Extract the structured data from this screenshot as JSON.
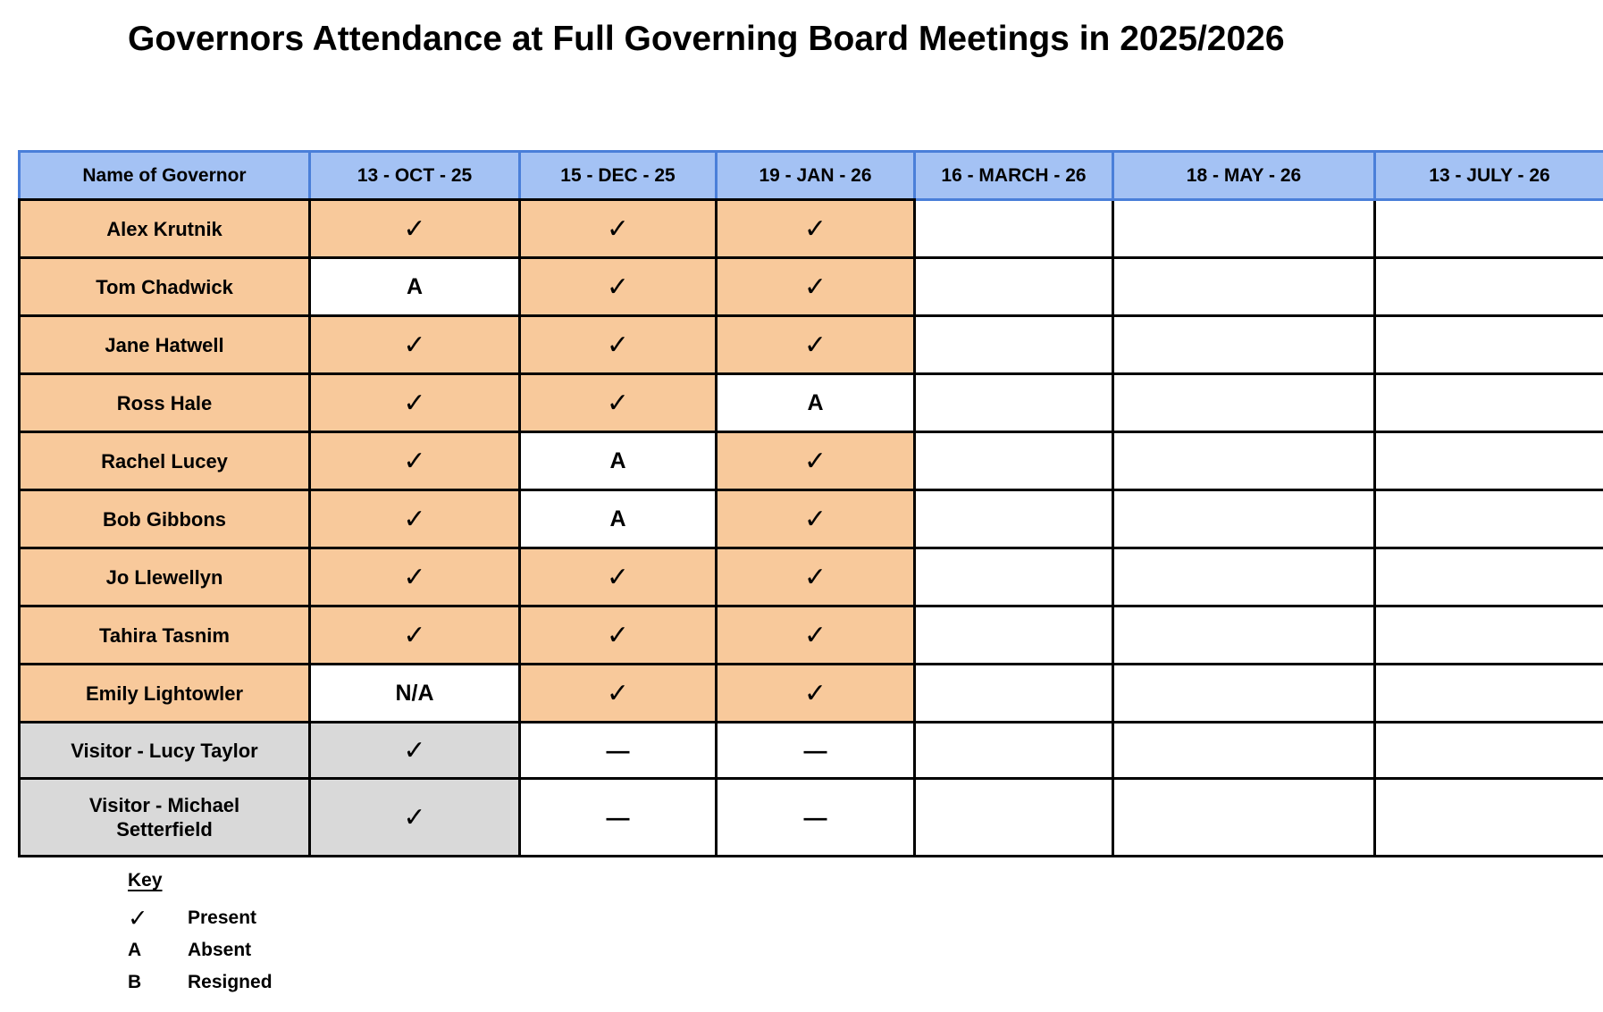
{
  "title": "Governors Attendance at Full Governing Board Meetings in 2025/2026",
  "colors": {
    "header_fill": "#A4C2F4",
    "header_border": "#4A7FD9",
    "governor_fill": "#F8C99B",
    "visitor_fill": "#D9D9D9",
    "grid_border": "#000000"
  },
  "table": {
    "columns": [
      "Name of Governor",
      "13 - OCT - 25",
      "15 - DEC - 25",
      "19 - JAN - 26",
      "16 - MARCH - 26",
      "18 - MAY - 26",
      "13 - JULY - 26"
    ],
    "rows": [
      {
        "name": "Alex Krutnik",
        "name_bg": "orange",
        "cells": [
          [
            "✓",
            "orange"
          ],
          [
            "✓",
            "orange"
          ],
          [
            "✓",
            "orange"
          ],
          [
            "",
            "white"
          ],
          [
            "",
            "white"
          ],
          [
            "",
            "white"
          ]
        ]
      },
      {
        "name": "Tom Chadwick",
        "name_bg": "orange",
        "cells": [
          [
            "A",
            "white"
          ],
          [
            "✓",
            "orange"
          ],
          [
            "✓",
            "orange"
          ],
          [
            "",
            "white"
          ],
          [
            "",
            "white"
          ],
          [
            "",
            "white"
          ]
        ]
      },
      {
        "name": "Jane Hatwell",
        "name_bg": "orange",
        "cells": [
          [
            "✓",
            "orange"
          ],
          [
            "✓",
            "orange"
          ],
          [
            "✓",
            "orange"
          ],
          [
            "",
            "white"
          ],
          [
            "",
            "white"
          ],
          [
            "",
            "white"
          ]
        ]
      },
      {
        "name": "Ross Hale",
        "name_bg": "orange",
        "cells": [
          [
            "✓",
            "orange"
          ],
          [
            "✓",
            "orange"
          ],
          [
            "A",
            "white"
          ],
          [
            "",
            "white"
          ],
          [
            "",
            "white"
          ],
          [
            "",
            "white"
          ]
        ]
      },
      {
        "name": "Rachel Lucey",
        "name_bg": "orange",
        "cells": [
          [
            "✓",
            "orange"
          ],
          [
            "A",
            "white"
          ],
          [
            "✓",
            "orange"
          ],
          [
            "",
            "white"
          ],
          [
            "",
            "white"
          ],
          [
            "",
            "white"
          ]
        ]
      },
      {
        "name": "Bob Gibbons",
        "name_bg": "orange",
        "cells": [
          [
            "✓",
            "orange"
          ],
          [
            "A",
            "white"
          ],
          [
            "✓",
            "orange"
          ],
          [
            "",
            "white"
          ],
          [
            "",
            "white"
          ],
          [
            "",
            "white"
          ]
        ]
      },
      {
        "name": "Jo Llewellyn",
        "name_bg": "orange",
        "cells": [
          [
            "✓",
            "orange"
          ],
          [
            "✓",
            "orange"
          ],
          [
            "✓",
            "orange"
          ],
          [
            "",
            "white"
          ],
          [
            "",
            "white"
          ],
          [
            "",
            "white"
          ]
        ]
      },
      {
        "name": "Tahira Tasnim",
        "name_bg": "orange",
        "cells": [
          [
            "✓",
            "orange"
          ],
          [
            "✓",
            "orange"
          ],
          [
            "✓",
            "orange"
          ],
          [
            "",
            "white"
          ],
          [
            "",
            "white"
          ],
          [
            "",
            "white"
          ]
        ]
      },
      {
        "name": "Emily Lightowler",
        "name_bg": "orange",
        "cells": [
          [
            "N/A",
            "white"
          ],
          [
            "✓",
            "orange"
          ],
          [
            "✓",
            "orange"
          ],
          [
            "",
            "white"
          ],
          [
            "",
            "white"
          ],
          [
            "",
            "white"
          ]
        ]
      },
      {
        "name": "Visitor - Lucy Taylor",
        "name_bg": "gray",
        "cells": [
          [
            "✓",
            "gray"
          ],
          [
            "—",
            "white"
          ],
          [
            "—",
            "white"
          ],
          [
            "",
            "white"
          ],
          [
            "",
            "white"
          ],
          [
            "",
            "white"
          ]
        ]
      },
      {
        "name": "Visitor - Michael Setterfield",
        "name_bg": "gray",
        "cells": [
          [
            "✓",
            "gray"
          ],
          [
            "—",
            "white"
          ],
          [
            "—",
            "white"
          ],
          [
            "",
            "white"
          ],
          [
            "",
            "white"
          ],
          [
            "",
            "white"
          ]
        ]
      }
    ]
  },
  "key": {
    "heading": "Key",
    "entries": [
      {
        "symbol": "✓",
        "label": "Present"
      },
      {
        "symbol": "A",
        "label": "Absent"
      },
      {
        "symbol": "B",
        "label": "Resigned"
      }
    ]
  }
}
